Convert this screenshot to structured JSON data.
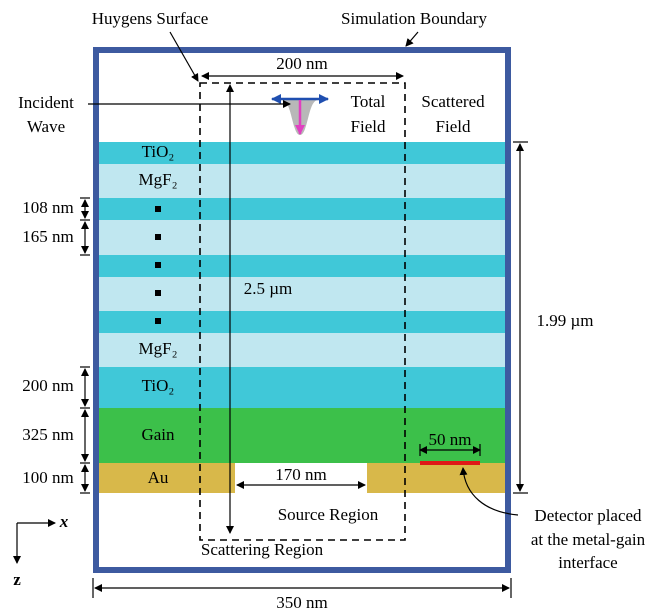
{
  "labels": {
    "huygens_surface": "Huygens Surface",
    "simulation_boundary": "Simulation Boundary",
    "incident_wave": [
      "Incident",
      "Wave"
    ],
    "total_field": [
      "Total",
      "Field"
    ],
    "scattered_field": [
      "Scattered",
      "Field"
    ],
    "width_200": "200 nm",
    "height_25": "2.5 µm",
    "height_199": "1.99 µm",
    "width_50": "50 nm",
    "width_170": "170 nm",
    "source_region": "Source Region",
    "scattering_region": "Scattering Region",
    "detector": [
      "Detector placed",
      "at the metal-gain",
      "interface"
    ],
    "width_350": "350 nm",
    "axis_x": "x",
    "axis_z": "z"
  },
  "layers": {
    "tio2_top": "TiO₂",
    "mgf2_top": "MgF₂",
    "mgf2_bottom": "MgF₂",
    "tio2_bottom": "TiO₂",
    "gain": "Gain",
    "au": "Au"
  },
  "thicknesses": [
    "108 nm",
    "165 nm",
    "200 nm",
    "325 nm",
    "100 nm"
  ]
}
